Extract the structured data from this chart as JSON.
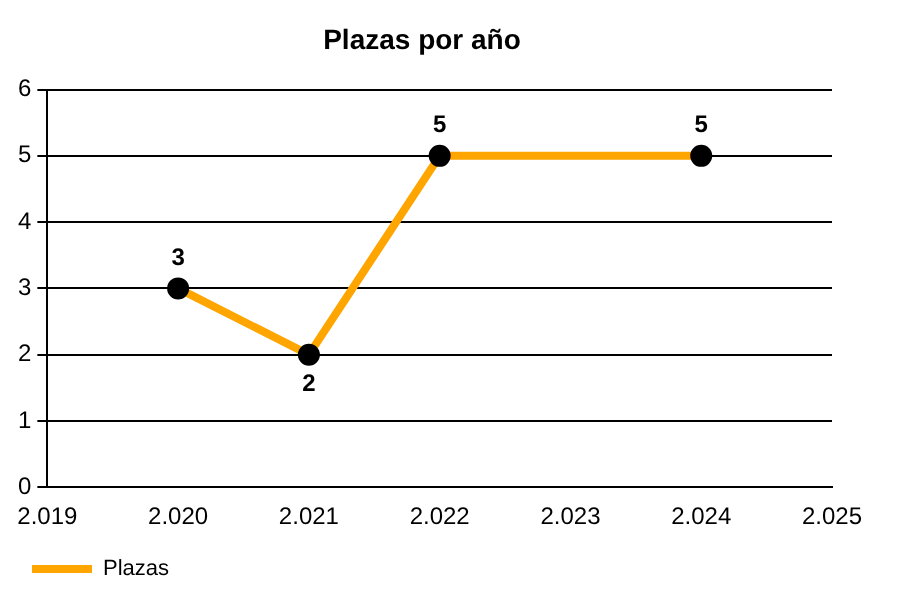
{
  "chart_data": {
    "type": "line",
    "title": "Plazas por año",
    "x": [
      2020,
      2021,
      2022,
      2024
    ],
    "series": [
      {
        "name": "Plazas",
        "color": "#ffa500",
        "values": [
          3,
          2,
          5,
          5
        ]
      }
    ],
    "xlim": [
      2019,
      2025
    ],
    "xticks": [
      {
        "value": 2019,
        "label": "2.019"
      },
      {
        "value": 2020,
        "label": "2.020"
      },
      {
        "value": 2021,
        "label": "2.021"
      },
      {
        "value": 2022,
        "label": "2.022"
      },
      {
        "value": 2023,
        "label": "2.023"
      },
      {
        "value": 2024,
        "label": "2.024"
      },
      {
        "value": 2025,
        "label": "2.025"
      }
    ],
    "ylim": [
      0,
      6
    ],
    "yticks": [
      0,
      1,
      2,
      3,
      4,
      5,
      6
    ],
    "grid": "y",
    "legend": "bottom left",
    "marker": "circle",
    "line_style": "solid",
    "data_labels": true
  }
}
